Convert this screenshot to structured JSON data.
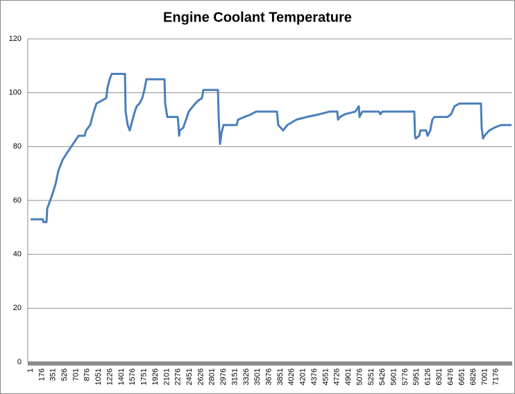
{
  "chart_data": {
    "type": "line",
    "title": "Engine Coolant Temperature",
    "x": [
      1,
      193,
      198,
      247,
      258,
      333,
      386,
      429,
      493,
      546,
      600,
      685,
      739,
      835,
      857,
      920,
      963,
      1017,
      1092,
      1167,
      1188,
      1220,
      1252,
      1456,
      1466,
      1498,
      1530,
      1562,
      1595,
      1637,
      1680,
      1723,
      1755,
      1787,
      2065,
      2076,
      2108,
      2269,
      2280,
      2290,
      2301,
      2354,
      2397,
      2440,
      2504,
      2579,
      2643,
      2664,
      2889,
      2900,
      2921,
      2943,
      2975,
      3178,
      3199,
      3295,
      3402,
      3477,
      3798,
      3819,
      3894,
      3958,
      4097,
      4258,
      4450,
      4611,
      4728,
      4739,
      4771,
      4846,
      5007,
      5060,
      5071,
      5114,
      5370,
      5391,
      5423,
      5915,
      5926,
      5936,
      5990,
      6011,
      6097,
      6119,
      6161,
      6193,
      6225,
      6429,
      6482,
      6536,
      6611,
      6942,
      6953,
      6975,
      6996,
      7071,
      7146,
      7253,
      7413
    ],
    "series": [
      {
        "name": "Engine Coolant Temperature",
        "color": "#4a7ebb",
        "values": [
          53,
          53,
          52,
          52,
          57,
          62,
          66,
          71,
          75,
          77,
          79,
          82,
          84,
          84,
          86,
          88,
          92,
          96,
          97,
          98,
          102,
          105,
          107,
          107,
          93,
          88,
          86,
          89,
          92,
          95,
          96,
          98,
          101,
          105,
          105,
          96,
          91,
          91,
          88,
          84,
          86,
          87,
          90,
          93,
          95,
          97,
          98,
          101,
          101,
          91,
          81,
          85,
          88,
          88,
          90,
          91,
          92,
          93,
          93,
          88,
          86,
          88,
          90,
          91,
          92,
          93,
          93,
          90,
          91,
          92,
          93,
          95,
          91,
          93,
          93,
          92,
          93,
          93,
          84,
          83,
          84,
          86,
          86,
          84,
          86,
          90,
          91,
          91,
          92,
          95,
          96,
          96,
          87,
          83,
          84,
          86,
          87,
          88,
          88
        ]
      }
    ],
    "xlim": [
      -42,
      7424
    ],
    "xticks": [
      1,
      176,
      351,
      526,
      701,
      876,
      1051,
      1226,
      1401,
      1576,
      1751,
      1926,
      2101,
      2276,
      2451,
      2626,
      2801,
      2976,
      3151,
      3326,
      3501,
      3676,
      3851,
      4026,
      4201,
      4376,
      4551,
      4726,
      4901,
      5076,
      5251,
      5426,
      5601,
      5776,
      5951,
      6126,
      6301,
      6476,
      6651,
      6826,
      7001,
      7176
    ],
    "ylim": [
      0,
      120
    ],
    "yticks": [
      0,
      20,
      40,
      60,
      80,
      100,
      120
    ],
    "grid": true
  }
}
